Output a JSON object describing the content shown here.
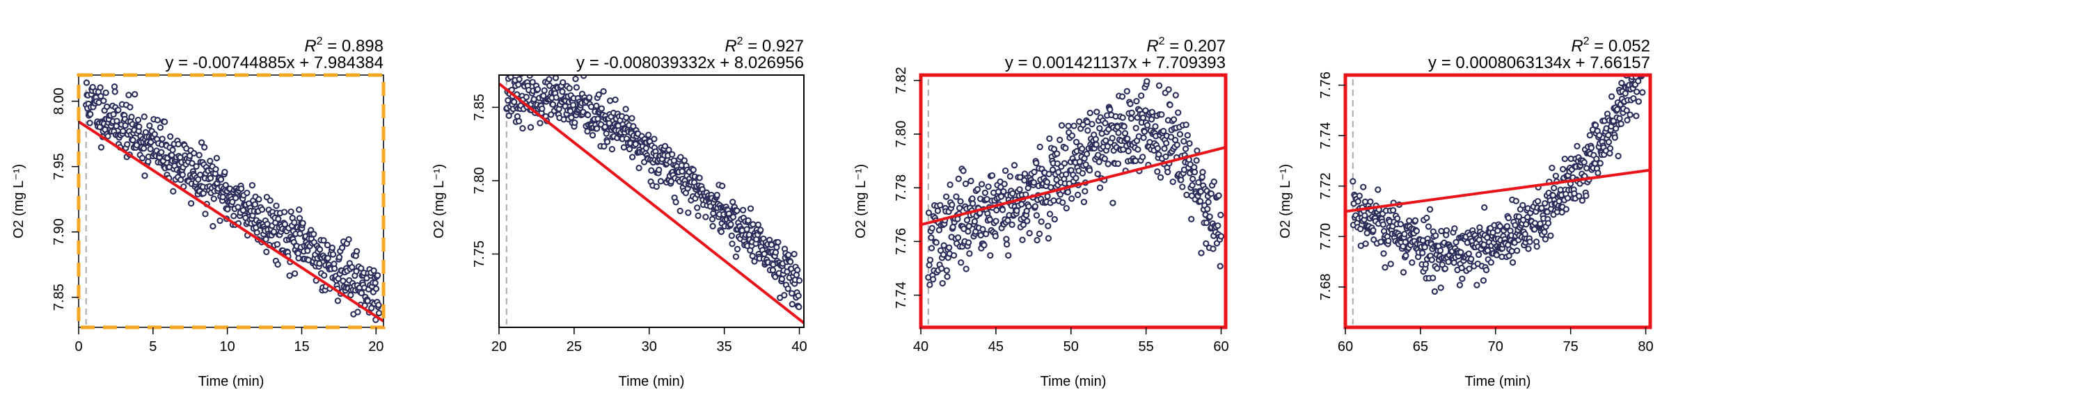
{
  "colors": {
    "points_stroke": "#2b2d5a",
    "fit_line": "#e8141a",
    "start_marker": "#aaaaaa",
    "orange_dash": "#f5a623"
  },
  "chart_data": [
    {
      "type": "scatter",
      "xlabel": "Time (min)",
      "ylabel": "O2 (mg L⁻¹)",
      "xlim": [
        0,
        20.5
      ],
      "ylim": [
        7.827,
        8.02
      ],
      "xticks": [
        0,
        5,
        10,
        15,
        20
      ],
      "yticks": [
        7.85,
        7.9,
        7.95,
        8.0
      ],
      "ytick_labels": [
        "7.85",
        "7.90",
        "7.95",
        "8.00"
      ],
      "start_marker_x": 0.5,
      "r2_label": "R",
      "r2_sup": "2",
      "r2_value": "= 0.898",
      "equation": "y = -0.00744885x + 7.984384",
      "fit": {
        "slope": -0.00744885,
        "intercept": 7.984384
      },
      "frame_style": "orange-dashed",
      "pattern": "linear-down",
      "noise": 0.011,
      "seed": 11
    },
    {
      "type": "scatter",
      "xlabel": "Time (min)",
      "ylabel": "O2 (mg L⁻¹)",
      "xlim": [
        20,
        40.3
      ],
      "ylim": [
        7.7,
        7.872
      ],
      "xticks": [
        20,
        25,
        30,
        35,
        40
      ],
      "yticks": [
        7.75,
        7.8,
        7.85
      ],
      "ytick_labels": [
        "7.75",
        "7.80",
        "7.85"
      ],
      "start_marker_x": 20.5,
      "r2_label": "R",
      "r2_sup": "2",
      "r2_value": "= 0.927",
      "equation": "y = -0.008039332x + 8.026956",
      "fit": {
        "slope": -0.008039332,
        "intercept": 8.026956
      },
      "frame_style": "plain",
      "pattern": "s-curve-down",
      "noise": 0.008,
      "seed": 23
    },
    {
      "type": "scatter",
      "xlabel": "Time (min)",
      "ylabel": "O2 (mg L⁻¹)",
      "xlim": [
        40,
        60.3
      ],
      "ylim": [
        7.728,
        7.822
      ],
      "xticks": [
        40,
        45,
        50,
        55,
        60
      ],
      "yticks": [
        7.74,
        7.76,
        7.78,
        7.8,
        7.82
      ],
      "ytick_labels": [
        "7.74",
        "7.76",
        "7.78",
        "7.80",
        "7.82"
      ],
      "start_marker_x": 40.5,
      "r2_label": "R",
      "r2_sup": "2",
      "r2_value": "= 0.207",
      "equation": "y = 0.001421137x + 7.709393",
      "fit": {
        "slope": 0.001421137,
        "intercept": 7.709393
      },
      "frame_style": "red",
      "pattern": "hump",
      "noise": 0.008,
      "seed": 37
    },
    {
      "type": "scatter",
      "xlabel": "Time (min)",
      "ylabel": "O2 (mg L⁻¹)",
      "xlim": [
        60,
        80.3
      ],
      "ylim": [
        7.664,
        7.764
      ],
      "xticks": [
        60,
        65,
        70,
        75,
        80
      ],
      "yticks": [
        7.68,
        7.7,
        7.72,
        7.74,
        7.76
      ],
      "ytick_labels": [
        "7.68",
        "7.70",
        "7.72",
        "7.74",
        "7.76"
      ],
      "start_marker_x": 60.5,
      "r2_label": "R",
      "r2_sup": "2",
      "r2_value": "= 0.052",
      "equation": "y = 0.0008063134x + 7.66157",
      "fit": {
        "slope": 0.0008063134,
        "intercept": 7.66157
      },
      "frame_style": "red",
      "pattern": "valley",
      "noise": 0.006,
      "seed": 53
    }
  ]
}
